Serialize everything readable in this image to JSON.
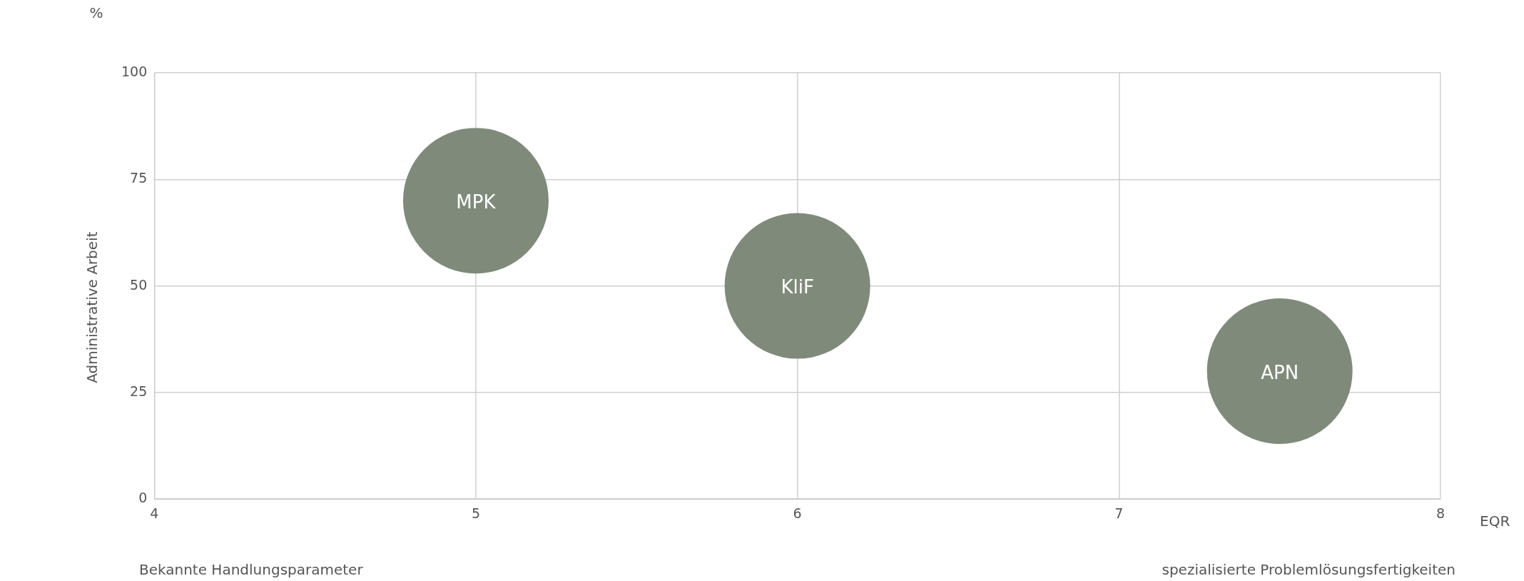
{
  "chart_data": {
    "type": "bubble",
    "xlabel": "EQR",
    "ylabel": "Administrative Arbeit",
    "x": [
      5,
      6,
      7.5
    ],
    "series": [
      {
        "color": "#7f8a7b",
        "values": [
          70,
          50,
          30
        ],
        "sizes": [
          1,
          1,
          1
        ]
      }
    ],
    "xlim": [
      4,
      8
    ],
    "xticks": [
      4,
      5,
      6,
      7,
      8
    ],
    "ylim": [
      0,
      100
    ],
    "yticks": [
      0,
      25,
      50,
      75,
      100
    ],
    "grid": true,
    "legend": false,
    "annotations": [
      "%",
      "Bekannte Handlungsparameter",
      "spezialisierte Problemlösungsfertigkeiten",
      {
        "text": "MPK",
        "x": 5,
        "y": 70
      },
      {
        "text": "KliF",
        "x": 6,
        "y": 50
      },
      {
        "text": "APN",
        "x": 7.5,
        "y": 30
      }
    ]
  }
}
